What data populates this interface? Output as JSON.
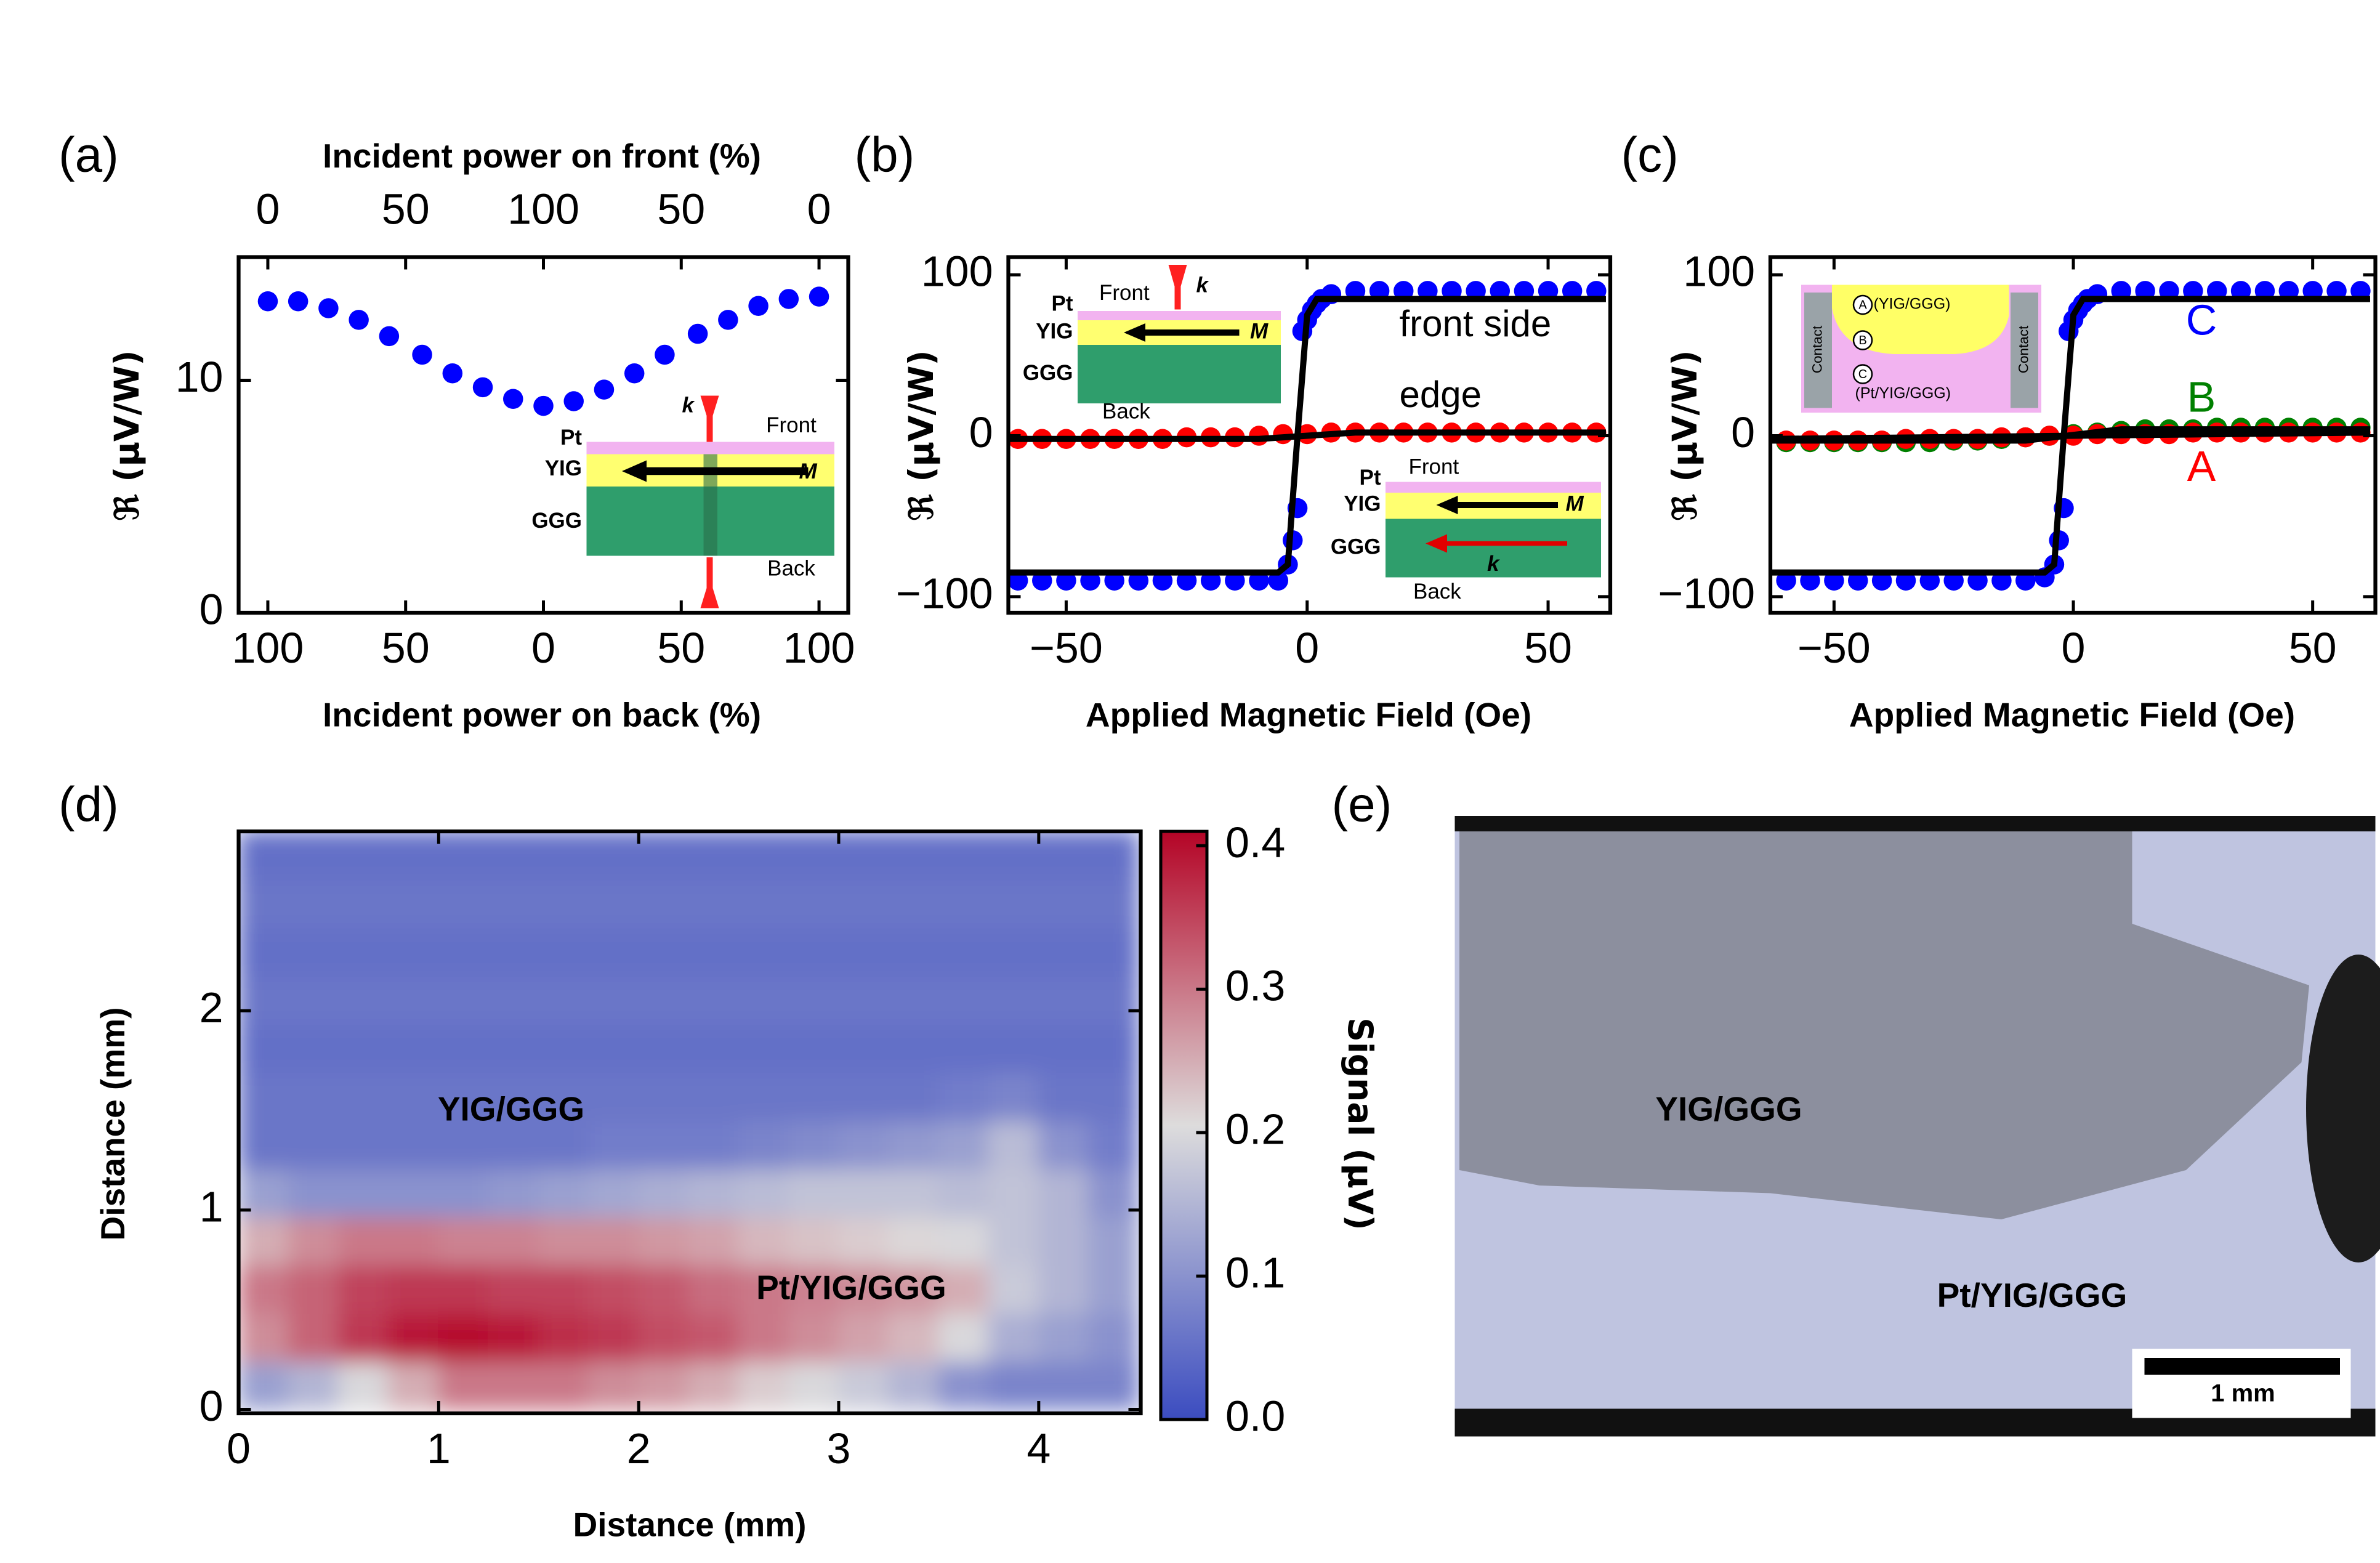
{
  "panels": [
    "(a)",
    "(b)",
    "(c)",
    "(d)",
    "(e)"
  ],
  "chart_data": [
    {
      "type": "scatter",
      "x2label": "Incident power on front (%)",
      "xlabel": "Incident power on back (%)",
      "ylabel": "ℜ (μV/W)",
      "xlim": [
        -110.6,
        110.6
      ],
      "ylim": [
        0,
        15.3
      ],
      "xticks": [
        {
          "value": -100,
          "label": "100"
        },
        {
          "value": -50,
          "label": "50"
        },
        0,
        {
          "value": 50,
          "label": "50"
        },
        {
          "value": 100,
          "label": "100"
        }
      ],
      "x2ticks": [
        {
          "value": -100,
          "label": "0"
        },
        {
          "value": -50,
          "label": "50"
        },
        {
          "value": 0,
          "label": "100"
        },
        {
          "value": 50,
          "label": "50"
        },
        {
          "value": 100,
          "label": "0"
        }
      ],
      "yticks": [
        0,
        10
      ],
      "series": [
        {
          "color": "#0000ff",
          "style": "marker",
          "x": [
            -100,
            -89,
            -78,
            -67,
            -56,
            -44,
            -33,
            -22,
            -11,
            0,
            11,
            22,
            33,
            44,
            56,
            67,
            78,
            89,
            100
          ],
          "values": [
            13.4,
            13.4,
            13.1,
            12.6,
            11.9,
            11.1,
            10.3,
            9.7,
            9.2,
            8.9,
            9.1,
            9.6,
            10.3,
            11.1,
            12.0,
            12.6,
            13.2,
            13.5,
            13.6
          ]
        }
      ],
      "inset_labels": [
        "Pt",
        "YIG",
        "GGG",
        "Front",
        "Back",
        "k",
        "M"
      ]
    },
    {
      "type": "scatter",
      "xlabel": "Applied Magnetic Field (Oe)",
      "ylabel": "ℜ (μV/W)",
      "xlim": [
        -62,
        62.9
      ],
      "ylim": [
        -110,
        111
      ],
      "xticks": [
        {
          "value": -50,
          "label": "−50"
        },
        0,
        50
      ],
      "yticks": [
        {
          "value": -100,
          "label": "−100"
        },
        0,
        100
      ],
      "series": [
        {
          "name": "front side",
          "color": "#0000ff",
          "style": "marker",
          "x": [
            -60,
            -55,
            -50,
            -45,
            -40,
            -35,
            -30,
            -25,
            -20,
            -15,
            -10,
            -6,
            -4,
            -3,
            -2,
            -1,
            0,
            1,
            2,
            3,
            5,
            10,
            15,
            20,
            25,
            30,
            35,
            40,
            45,
            50,
            55,
            60
          ],
          "values": [
            -90,
            -90,
            -90,
            -90,
            -90,
            -90,
            -90,
            -90,
            -90,
            -90,
            -90,
            -90,
            -80,
            -65,
            -45,
            65,
            72,
            78,
            82,
            85,
            88,
            90,
            90,
            90,
            90,
            90,
            90,
            90,
            90,
            90,
            90,
            90
          ]
        },
        {
          "name": "edge",
          "color": "#ff0000",
          "style": "marker",
          "x": [
            -60,
            -55,
            -50,
            -45,
            -40,
            -35,
            -30,
            -25,
            -20,
            -15,
            -10,
            -5,
            0,
            5,
            10,
            15,
            20,
            25,
            30,
            35,
            40,
            45,
            50,
            55,
            60
          ],
          "values": [
            -2,
            -2,
            -2,
            -2,
            -2,
            -2,
            -2,
            -1,
            -1,
            -1,
            0,
            1,
            1,
            2,
            2,
            2,
            2,
            2,
            2,
            2,
            2,
            2,
            2,
            2,
            2
          ]
        },
        {
          "color": "#000000",
          "style": "line",
          "x": [
            -62,
            -6,
            -4,
            -2,
            0,
            2,
            62
          ],
          "values": [
            -85,
            -85,
            -80,
            0,
            75,
            85,
            85
          ]
        },
        {
          "color": "#000000",
          "style": "line",
          "x": [
            -62,
            -10,
            10,
            62
          ],
          "values": [
            -2,
            -2,
            2,
            2
          ]
        }
      ],
      "inset_labels": [
        "Pt",
        "YIG",
        "GGG",
        "Front",
        "Back",
        "k",
        "M"
      ],
      "inset2_labels": [
        "Pt",
        "YIG",
        "GGG",
        "Front",
        "Back",
        "k",
        "M"
      ]
    },
    {
      "type": "scatter",
      "xlabel": "Applied Magnetic Field (Oe)",
      "ylabel": "ℜ (μV/W)",
      "xlim": [
        -63.3,
        63.1
      ],
      "ylim": [
        -110,
        111
      ],
      "xticks": [
        {
          "value": -50,
          "label": "−50"
        },
        0,
        50
      ],
      "yticks": [
        {
          "value": -100,
          "label": "−100"
        },
        0,
        100
      ],
      "series": [
        {
          "name": "C",
          "color": "#0000ff",
          "style": "marker",
          "x": [
            -60,
            -55,
            -50,
            -45,
            -40,
            -35,
            -30,
            -25,
            -20,
            -15,
            -10,
            -6,
            -4,
            -3,
            -2,
            -1,
            0,
            1,
            2,
            3,
            5,
            10,
            15,
            20,
            25,
            30,
            35,
            40,
            45,
            50,
            55,
            60
          ],
          "values": [
            -90,
            -90,
            -90,
            -90,
            -90,
            -90,
            -90,
            -90,
            -90,
            -90,
            -90,
            -88,
            -80,
            -65,
            -45,
            65,
            72,
            78,
            82,
            85,
            88,
            90,
            90,
            90,
            90,
            90,
            90,
            90,
            90,
            90,
            90,
            90
          ]
        },
        {
          "name": "B",
          "color": "#008000",
          "style": "marker",
          "x": [
            -60,
            -55,
            -50,
            -45,
            -40,
            -35,
            -30,
            -25,
            -20,
            -15,
            -10,
            -5,
            0,
            5,
            10,
            15,
            20,
            25,
            30,
            35,
            40,
            45,
            50,
            55,
            60
          ],
          "values": [
            -4,
            -4,
            -4,
            -4,
            -4,
            -4,
            -4,
            -3,
            -3,
            -2,
            -1,
            0,
            1,
            2,
            3,
            4,
            4,
            4,
            5,
            5,
            5,
            5,
            5,
            5,
            5
          ]
        },
        {
          "name": "A",
          "color": "#ff0000",
          "style": "marker",
          "x": [
            -60,
            -55,
            -50,
            -45,
            -40,
            -35,
            -30,
            -25,
            -20,
            -15,
            -10,
            -5,
            0,
            5,
            10,
            15,
            20,
            25,
            30,
            35,
            40,
            45,
            50,
            55,
            60
          ],
          "values": [
            -3,
            -3,
            -3,
            -3,
            -3,
            -2,
            -2,
            -2,
            -2,
            -1,
            -1,
            0,
            0,
            1,
            1,
            1,
            1,
            2,
            2,
            2,
            2,
            2,
            2,
            2,
            2
          ]
        },
        {
          "color": "#000000",
          "style": "line",
          "x": [
            -63,
            -6,
            -4,
            -2,
            0,
            2,
            62
          ],
          "values": [
            -85,
            -85,
            -80,
            0,
            75,
            85,
            85
          ]
        },
        {
          "color": "#000000",
          "style": "line",
          "x": [
            -63,
            -10,
            10,
            62
          ],
          "values": [
            -3,
            -3,
            4,
            4
          ]
        },
        {
          "color": "#000000",
          "style": "line",
          "x": [
            -63,
            62
          ],
          "values": [
            -2,
            2
          ]
        }
      ],
      "inset_labels": [
        "Contact",
        "Contact",
        "A",
        "B",
        "C",
        "(YIG/GGG)",
        "(Pt/YIG/GGG)"
      ]
    },
    {
      "type": "heatmap",
      "xlabel": "Distance (mm)",
      "ylabel": "Distance (mm)",
      "clabel": "Signal (μV)",
      "xlim": [
        0,
        4.51
      ],
      "ylim": [
        -0.02,
        2.9
      ],
      "extent": [
        0,
        4.5,
        0,
        2.9
      ],
      "xticks": [
        0,
        1,
        2,
        3,
        4
      ],
      "yticks": [
        0,
        1,
        2
      ],
      "clim": [
        0,
        0.41
      ],
      "cticks": [
        {
          "value": 0,
          "label": "0.0"
        },
        0.1,
        0.2,
        0.3,
        0.4
      ],
      "colormap": [
        "#3b4cc0",
        "#dddcdc",
        "#b40426"
      ],
      "z": [
        [
          0.12,
          0.15,
          0.2,
          0.25,
          0.3,
          0.3,
          0.3,
          0.28,
          0.27,
          0.25,
          0.22,
          0.2,
          0.18,
          0.15,
          0.1,
          0.08,
          0.08,
          0.08
        ],
        [
          0.28,
          0.32,
          0.36,
          0.39,
          0.4,
          0.39,
          0.37,
          0.36,
          0.34,
          0.33,
          0.3,
          0.28,
          0.26,
          0.24,
          0.2,
          0.14,
          0.12,
          0.1
        ],
        [
          0.3,
          0.32,
          0.35,
          0.36,
          0.36,
          0.35,
          0.35,
          0.34,
          0.33,
          0.31,
          0.3,
          0.29,
          0.28,
          0.27,
          0.25,
          0.18,
          0.15,
          0.12
        ],
        [
          0.25,
          0.28,
          0.3,
          0.3,
          0.29,
          0.29,
          0.28,
          0.28,
          0.27,
          0.26,
          0.24,
          0.23,
          0.22,
          0.21,
          0.2,
          0.17,
          0.15,
          0.12
        ],
        [
          0.12,
          0.1,
          0.1,
          0.1,
          0.1,
          0.11,
          0.12,
          0.13,
          0.14,
          0.15,
          0.16,
          0.17,
          0.17,
          0.17,
          0.16,
          0.17,
          0.15,
          0.1
        ],
        [
          0.06,
          0.06,
          0.06,
          0.06,
          0.06,
          0.06,
          0.06,
          0.07,
          0.07,
          0.07,
          0.08,
          0.09,
          0.1,
          0.11,
          0.12,
          0.16,
          0.1,
          0.07
        ],
        [
          0.06,
          0.06,
          0.06,
          0.06,
          0.06,
          0.06,
          0.06,
          0.06,
          0.06,
          0.06,
          0.06,
          0.06,
          0.06,
          0.06,
          0.07,
          0.08,
          0.06,
          0.06
        ],
        [
          0.05,
          0.05,
          0.05,
          0.05,
          0.05,
          0.05,
          0.05,
          0.05,
          0.05,
          0.05,
          0.05,
          0.05,
          0.05,
          0.05,
          0.05,
          0.05,
          0.05,
          0.05
        ],
        [
          0.06,
          0.06,
          0.06,
          0.06,
          0.06,
          0.06,
          0.06,
          0.06,
          0.06,
          0.06,
          0.06,
          0.06,
          0.06,
          0.06,
          0.06,
          0.06,
          0.06,
          0.06
        ],
        [
          0.05,
          0.05,
          0.05,
          0.05,
          0.05,
          0.05,
          0.05,
          0.05,
          0.05,
          0.05,
          0.05,
          0.05,
          0.05,
          0.05,
          0.05,
          0.05,
          0.05,
          0.05
        ],
        [
          0.06,
          0.06,
          0.06,
          0.06,
          0.06,
          0.06,
          0.06,
          0.06,
          0.06,
          0.06,
          0.06,
          0.06,
          0.06,
          0.06,
          0.06,
          0.06,
          0.06,
          0.06
        ],
        [
          0.05,
          0.05,
          0.05,
          0.05,
          0.05,
          0.05,
          0.05,
          0.05,
          0.05,
          0.05,
          0.05,
          0.05,
          0.05,
          0.05,
          0.05,
          0.05,
          0.05,
          0.05
        ]
      ],
      "labels": [
        "YIG/GGG",
        "Pt/YIG/GGG"
      ]
    }
  ],
  "photo": {
    "labels": [
      "YIG/GGG",
      "Pt/YIG/GGG"
    ],
    "scalebar": "1 mm"
  }
}
